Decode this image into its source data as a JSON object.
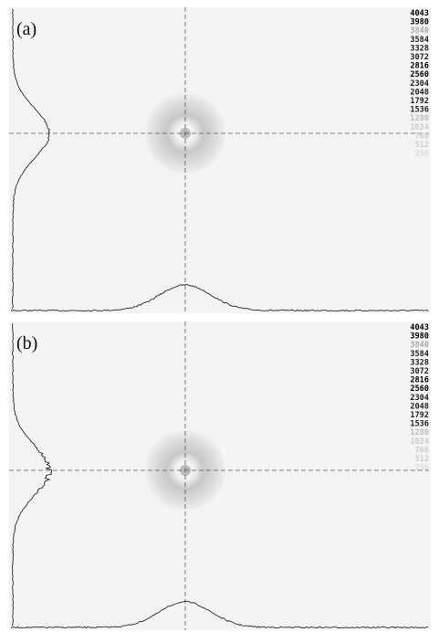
{
  "panels": [
    {
      "label": "(a)",
      "scale": [
        "4043",
        "3980",
        "3840",
        "3584",
        "3328",
        "3072",
        "2816",
        "2560",
        "2304",
        "2048",
        "1792",
        "1536",
        "1280",
        "1024",
        "768",
        "512",
        "256"
      ]
    },
    {
      "label": "(b)",
      "scale": [
        "4043",
        "3980",
        "3840",
        "3584",
        "3328",
        "3072",
        "2816",
        "2560",
        "2304",
        "2048",
        "1792",
        "1536",
        "1280",
        "1024",
        "768",
        "512",
        "256"
      ]
    }
  ]
}
